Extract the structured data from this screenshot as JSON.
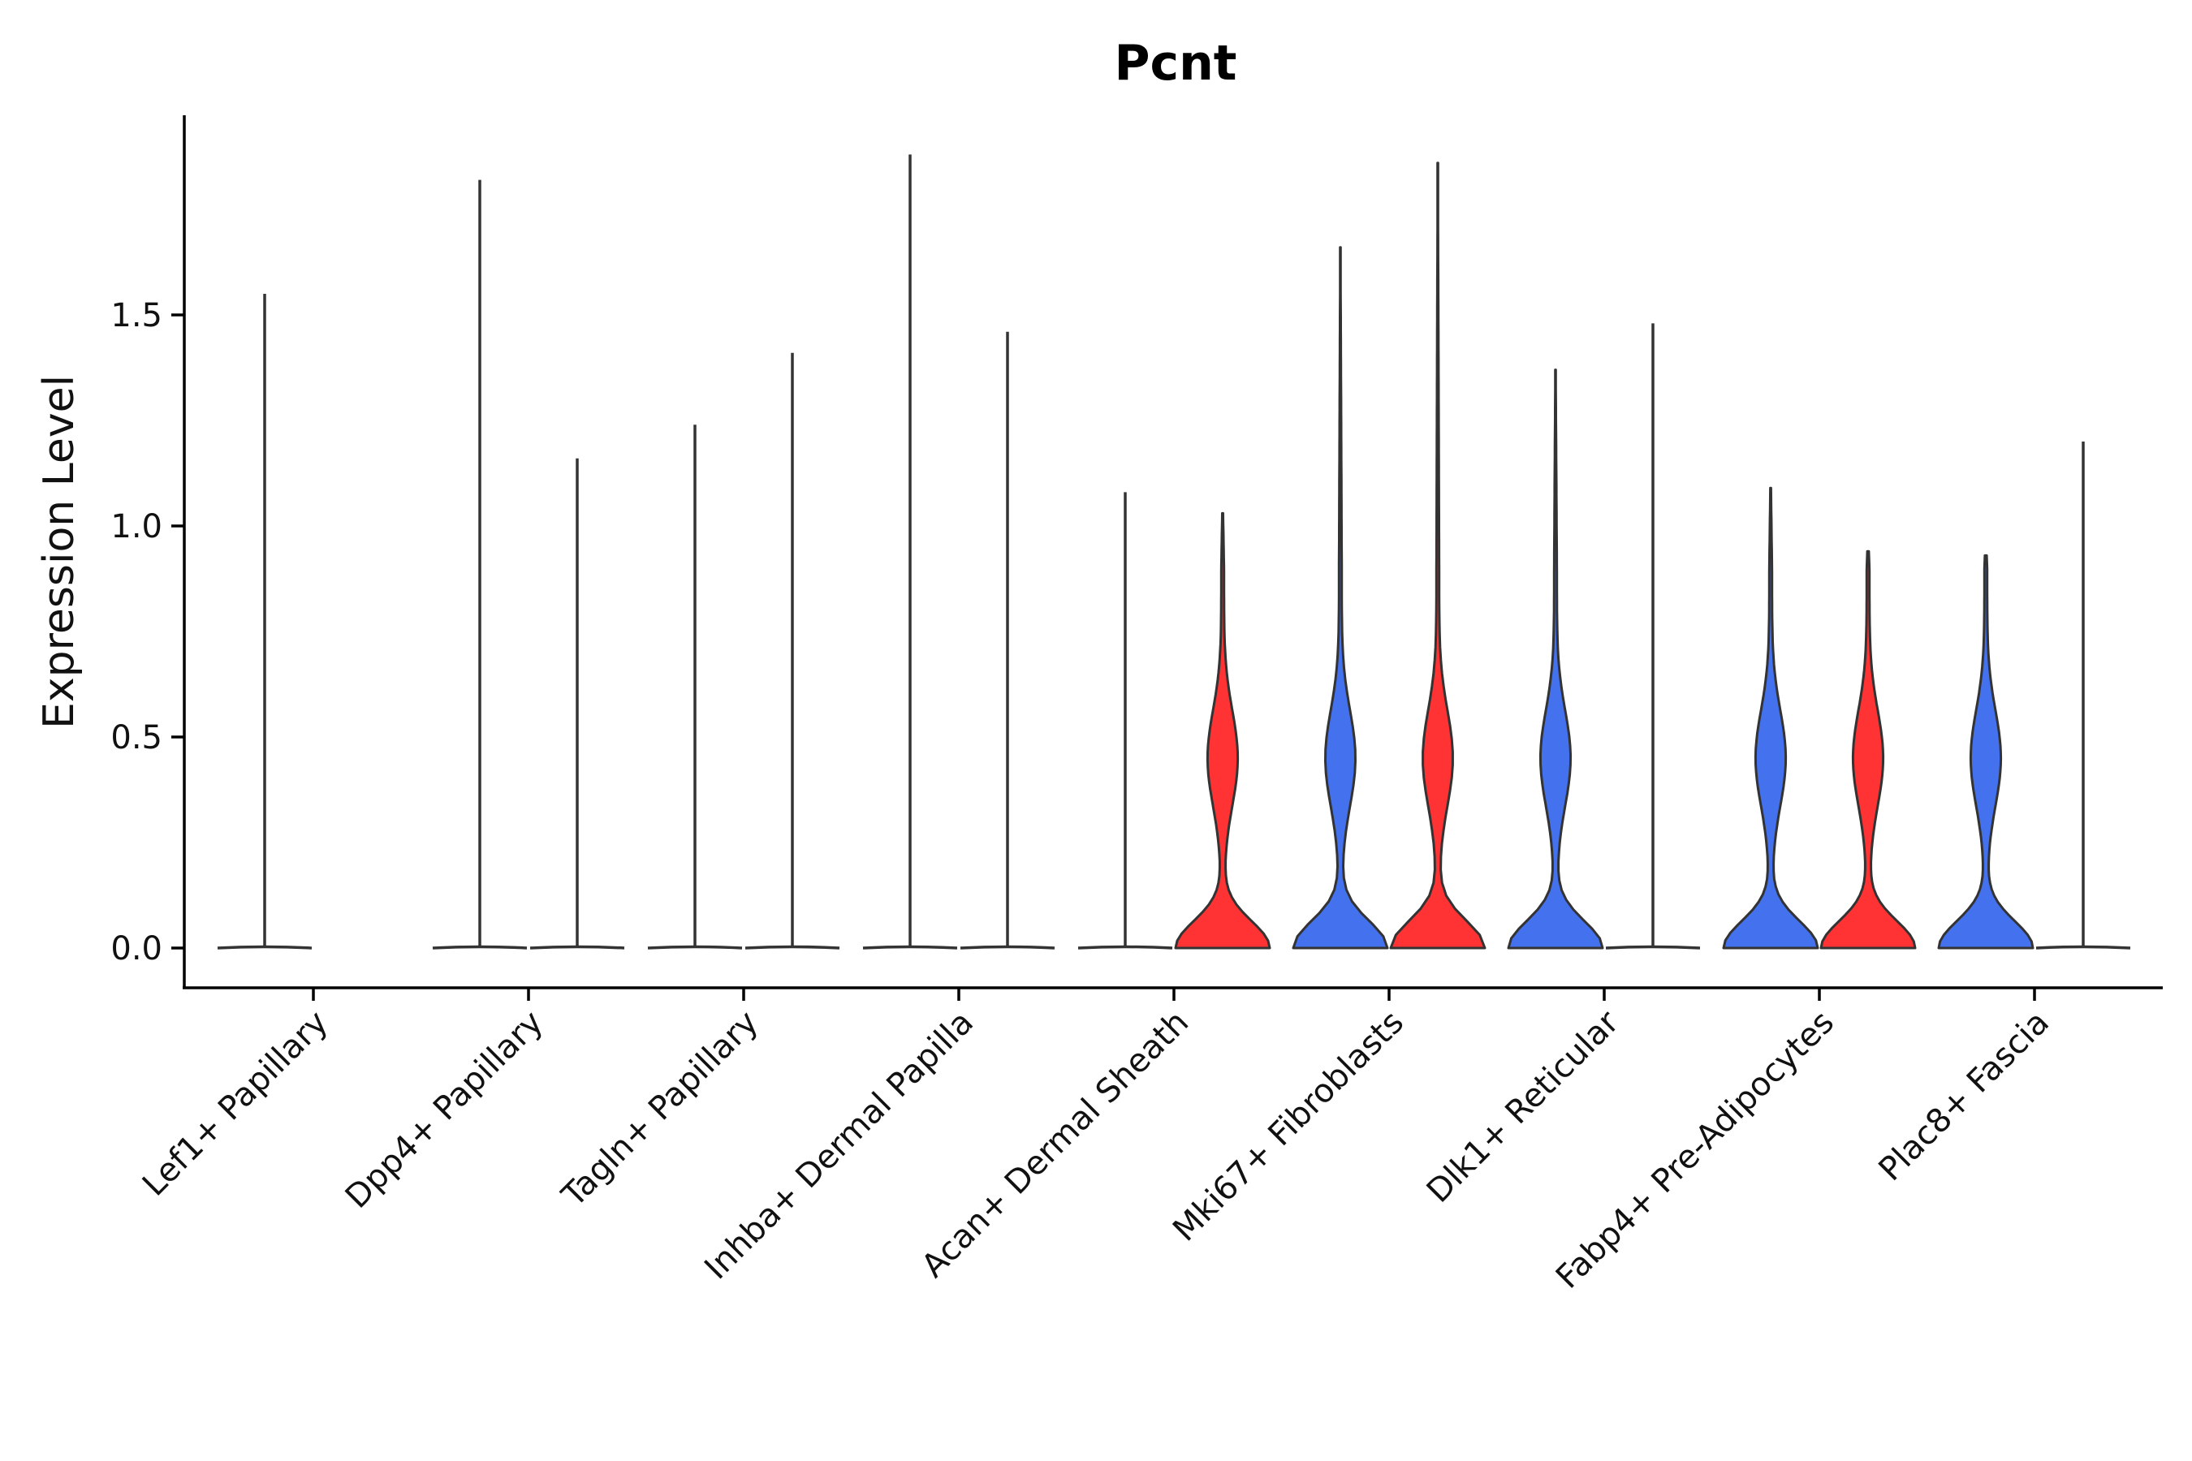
{
  "chart_data": {
    "type": "violin",
    "title": "Pcnt",
    "xlabel": "",
    "ylabel": "Expression Level",
    "ylim": [
      -0.09,
      1.98
    ],
    "yticks": [
      0.0,
      0.5,
      1.0,
      1.5
    ],
    "ytick_labels": [
      "0.0",
      "0.5",
      "1.0",
      "1.5"
    ],
    "grid": false,
    "legend": "none",
    "categories": [
      "Lef1+ Papillary",
      "Dpp4+ Papillary",
      "Tagln+ Papillary",
      "Inhba+ Dermal Papilla",
      "Acan+ Dermal Sheath",
      "Mki67+ Fibroblasts",
      "Dlk1+ Reticular",
      "Fabp4+ Pre-Adipocytes",
      "Plac8+ Fascia"
    ],
    "colors": {
      "blue": "#4472ee",
      "red": "#ff3333"
    },
    "series": [
      {
        "color": "#4472ee",
        "max": [
          1.55,
          1.82,
          1.24,
          1.88,
          1.08,
          1.66,
          1.37,
          1.09,
          0.93
        ],
        "dense": [
          false,
          false,
          false,
          false,
          false,
          true,
          true,
          true,
          true
        ]
      },
      {
        "color": "#ff3333",
        "max": [
          null,
          1.16,
          1.41,
          1.46,
          1.03,
          1.86,
          1.48,
          0.94,
          1.2
        ],
        "dense": [
          false,
          false,
          false,
          false,
          true,
          true,
          false,
          true,
          false
        ]
      }
    ]
  }
}
